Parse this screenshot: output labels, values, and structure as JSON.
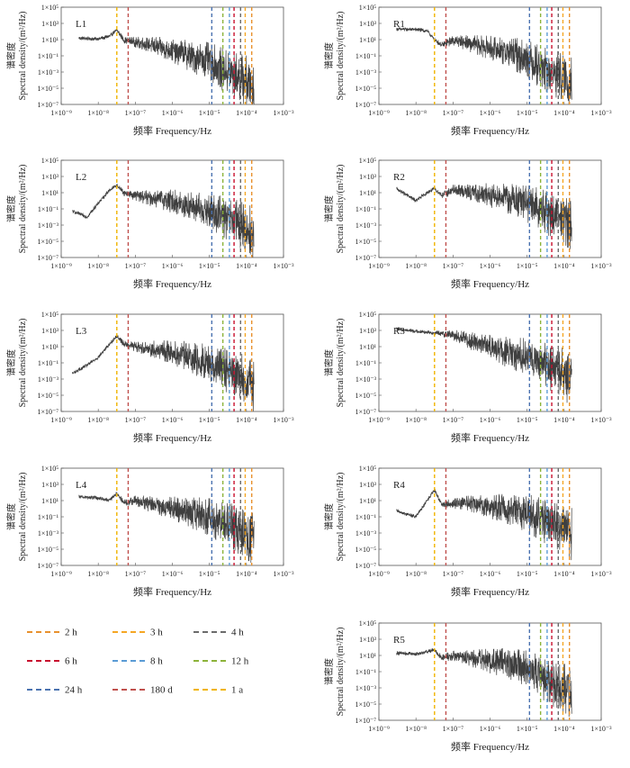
{
  "axis_text": {
    "xlabel": "频率 Frequency/Hz",
    "ylabel_cn": "谱密度",
    "ylabel_en": "Spectral density/(m²/Hz)",
    "xticks": [
      "1×10⁻⁹",
      "1×10⁻⁸",
      "1×10⁻⁷",
      "1×10⁻⁶",
      "1×10⁻⁵",
      "1×10⁻⁴",
      "1×10⁻³"
    ],
    "yticks": [
      "1×10⁵",
      "1×10³",
      "1×10¹",
      "1×10⁻¹",
      "1×10⁻³",
      "1×10⁻⁵",
      "1×10⁻⁷"
    ]
  },
  "periods": [
    {
      "label": "2 h",
      "color": "#e8912e",
      "freq": 0.0001389
    },
    {
      "label": "3 h",
      "color": "#f5a623",
      "freq": 9.26e-05
    },
    {
      "label": "4 h",
      "color": "#6b6b6b",
      "freq": 6.94e-05
    },
    {
      "label": "6 h",
      "color": "#c8102e",
      "freq": 4.63e-05
    },
    {
      "label": "8 h",
      "color": "#5b9bd5",
      "freq": 3.47e-05
    },
    {
      "label": "12 h",
      "color": "#8cb33a",
      "freq": 2.31e-05
    },
    {
      "label": "24 h",
      "color": "#4a72b0",
      "freq": 1.16e-05
    },
    {
      "label": "180 d",
      "color": "#c0504d",
      "freq": 6.43e-08
    },
    {
      "label": "1 a",
      "color": "#f0b400",
      "freq": 3.17e-08
    }
  ],
  "chart_data": [
    {
      "type": "line",
      "panel": "L1",
      "xlim": [
        1e-09,
        0.001
      ],
      "ylim": [
        1e-07,
        100000.0
      ],
      "log_x": true,
      "log_y": true,
      "x": [
        3e-09,
        1e-08,
        2e-08,
        3.17e-08,
        5e-08,
        1e-07,
        3e-07,
        1e-06,
        3e-06,
        1e-05,
        3e-05,
        0.0001,
        0.00016
      ],
      "values": [
        15,
        12,
        25,
        150,
        8,
        5,
        2,
        0.5,
        0.1,
        0.02,
        0.001,
        0.0001,
        1e-05
      ]
    },
    {
      "type": "line",
      "panel": "R1",
      "xlim": [
        1e-09,
        0.001
      ],
      "ylim": [
        1e-07,
        100000.0
      ],
      "log_x": true,
      "log_y": true,
      "x": [
        3e-09,
        1e-08,
        2e-08,
        3.17e-08,
        5e-08,
        1e-07,
        3e-07,
        1e-06,
        3e-06,
        1e-05,
        3e-05,
        0.0001,
        0.00016
      ],
      "values": [
        200,
        180,
        120,
        10,
        2,
        8,
        3,
        1,
        0.3,
        0.05,
        0.002,
        0.0002,
        5e-05
      ]
    },
    {
      "type": "line",
      "panel": "L2",
      "xlim": [
        1e-09,
        0.001
      ],
      "ylim": [
        1e-07,
        100000.0
      ],
      "log_x": true,
      "log_y": true,
      "x": [
        2e-09,
        5e-09,
        1e-08,
        2e-08,
        3.17e-08,
        5e-08,
        1e-07,
        3e-07,
        1e-06,
        3e-06,
        1e-05,
        3e-05,
        0.0001,
        0.00016
      ],
      "values": [
        0.05,
        0.01,
        0.5,
        20,
        80,
        10,
        5,
        2,
        0.8,
        0.2,
        0.05,
        0.005,
        0.0005,
        5e-05
      ]
    },
    {
      "type": "line",
      "panel": "R2",
      "xlim": [
        1e-09,
        0.001
      ],
      "ylim": [
        1e-07,
        100000.0
      ],
      "log_x": true,
      "log_y": true,
      "x": [
        3e-09,
        1e-08,
        2e-08,
        3.17e-08,
        5e-08,
        1e-07,
        3e-07,
        1e-06,
        3e-06,
        1e-05,
        3e-05,
        0.0001,
        0.00016
      ],
      "values": [
        30,
        1,
        10,
        30,
        5,
        20,
        10,
        5,
        2,
        0.5,
        0.05,
        0.005,
        0.001
      ]
    },
    {
      "type": "line",
      "panel": "L3",
      "xlim": [
        1e-09,
        0.001
      ],
      "ylim": [
        1e-07,
        100000.0
      ],
      "log_x": true,
      "log_y": true,
      "x": [
        2e-09,
        5e-09,
        1e-08,
        2e-08,
        3.17e-08,
        5e-08,
        1e-07,
        3e-07,
        1e-06,
        3e-06,
        1e-05,
        3e-05,
        0.0001,
        0.00016
      ],
      "values": [
        0.005,
        0.05,
        0.5,
        20,
        200,
        20,
        10,
        5,
        2,
        0.5,
        0.1,
        0.01,
        0.0005,
        5e-05
      ]
    },
    {
      "type": "line",
      "panel": "R3",
      "xlim": [
        1e-09,
        0.001
      ],
      "ylim": [
        1e-07,
        100000.0
      ],
      "log_x": true,
      "log_y": true,
      "x": [
        3e-09,
        1e-08,
        2e-08,
        3.17e-08,
        5e-08,
        1e-07,
        3e-07,
        1e-06,
        3e-06,
        1e-05,
        3e-05,
        0.0001,
        0.00016
      ],
      "values": [
        1500,
        800,
        600,
        500,
        400,
        300,
        50,
        10,
        2,
        0.5,
        0.05,
        0.005,
        0.0005
      ]
    },
    {
      "type": "line",
      "panel": "L4",
      "xlim": [
        1e-09,
        0.001
      ],
      "ylim": [
        1e-07,
        100000.0
      ],
      "log_x": true,
      "log_y": true,
      "x": [
        3e-09,
        1e-08,
        2e-08,
        3.17e-08,
        5e-08,
        1e-07,
        3e-07,
        1e-06,
        3e-06,
        1e-05,
        3e-05,
        0.0001,
        0.00016
      ],
      "values": [
        30,
        20,
        10,
        80,
        5,
        10,
        3,
        1,
        0.3,
        0.1,
        0.01,
        0.001,
        0.0001
      ]
    },
    {
      "type": "line",
      "panel": "R4",
      "xlim": [
        1e-09,
        0.001
      ],
      "ylim": [
        1e-07,
        100000.0
      ],
      "log_x": true,
      "log_y": true,
      "x": [
        3e-09,
        1e-08,
        2e-08,
        3.17e-08,
        5e-08,
        1e-07,
        3e-07,
        1e-06,
        3e-06,
        1e-05,
        3e-05,
        0.0001,
        0.00016
      ],
      "values": [
        0.5,
        0.1,
        10,
        200,
        3,
        5,
        5,
        2,
        1,
        0.3,
        0.03,
        0.003,
        0.0005
      ]
    },
    {
      "type": "line",
      "panel": "R5",
      "xlim": [
        1e-09,
        0.001
      ],
      "ylim": [
        1e-07,
        100000.0
      ],
      "log_x": true,
      "log_y": true,
      "x": [
        3e-09,
        1e-08,
        2e-08,
        3.17e-08,
        5e-08,
        1e-07,
        3e-07,
        1e-06,
        3e-06,
        1e-05,
        3e-05,
        0.0001,
        0.00016
      ],
      "values": [
        20,
        15,
        30,
        50,
        5,
        10,
        5,
        2,
        1,
        0.3,
        0.01,
        0.001,
        0.0002
      ]
    }
  ]
}
